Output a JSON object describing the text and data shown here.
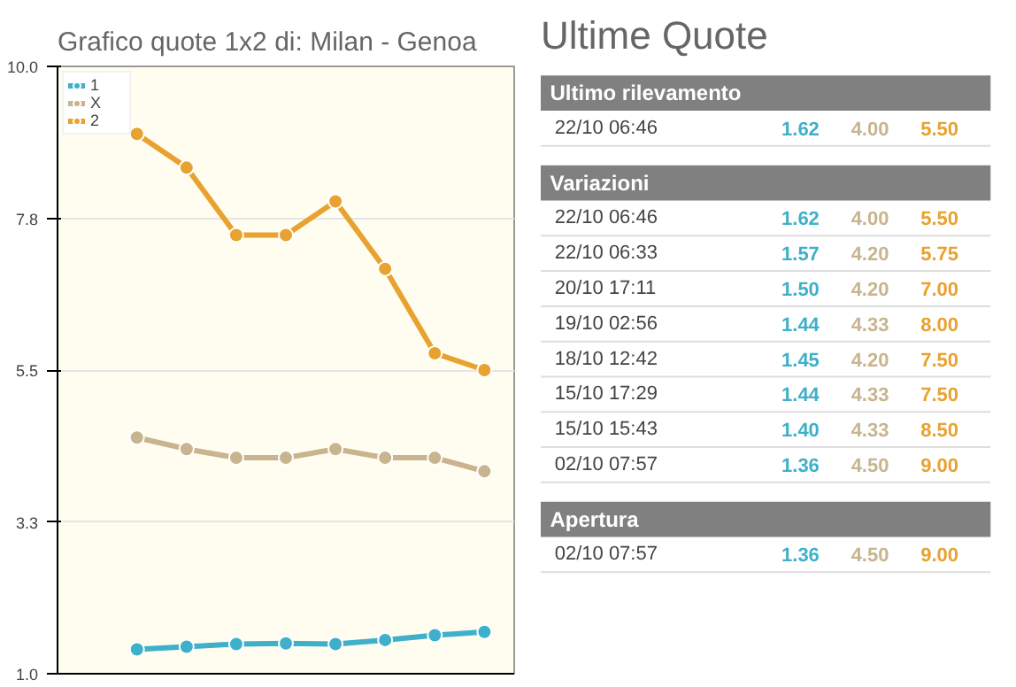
{
  "chart_data": [
    {
      "type": "line",
      "title": "Grafico quote 1x2 di: Milan - Genoa",
      "categories": [
        null,
        null,
        null,
        null,
        null,
        null,
        null,
        null
      ],
      "series": [
        {
          "name": "1",
          "color": "#3fb0c9",
          "values": [
            1.36,
            1.4,
            1.44,
            1.45,
            1.44,
            1.5,
            1.57,
            1.62
          ]
        },
        {
          "name": "X",
          "color": "#c8b48f",
          "values": [
            4.5,
            4.33,
            4.2,
            4.2,
            4.33,
            4.2,
            4.2,
            4.0
          ]
        },
        {
          "name": "2",
          "color": "#e8a22f",
          "values": [
            9.0,
            8.5,
            7.5,
            7.5,
            8.0,
            7.0,
            5.75,
            5.5
          ]
        }
      ],
      "ylim": [
        1.0,
        10.0
      ],
      "yticks": [
        {
          "value": 1.0,
          "label": "1.0"
        },
        {
          "value": 3.25,
          "label": "3.3"
        },
        {
          "value": 5.5,
          "label": "5.5"
        },
        {
          "value": 7.75,
          "label": "7.8"
        },
        {
          "value": 10.0,
          "label": "10.0"
        }
      ],
      "grid": "y",
      "legend": "top left",
      "marker": "circle",
      "line_style": "solid"
    },
    {
      "type": "other",
      "title": "Ultime Quote",
      "annotations": [
        "Ultimo rilevamento",
        "Variazioni",
        "Apertura"
      ],
      "categories": [
        "22/10 06:46",
        "22/10 06:46",
        "22/10 06:33",
        "20/10 17:11",
        "19/10 02:56",
        "18/10 12:42",
        "15/10 17:29",
        "15/10 15:43",
        "02/10 07:57",
        "02/10 07:57"
      ],
      "series": [
        {
          "color": "#3fb0c9",
          "values": [
            1.62,
            1.62,
            1.57,
            1.5,
            1.44,
            1.45,
            1.44,
            1.4,
            1.36,
            1.36
          ],
          "value_labels": [
            "1.62",
            "1.62",
            "1.57",
            "1.50",
            "1.44",
            "1.45",
            "1.44",
            "1.40",
            "1.36",
            "1.36"
          ]
        },
        {
          "color": "#c8b48f",
          "values": [
            4.0,
            4.0,
            4.2,
            4.2,
            4.33,
            4.2,
            4.33,
            4.33,
            4.5,
            4.5
          ],
          "value_labels": [
            "4.00",
            "4.00",
            "4.20",
            "4.20",
            "4.33",
            "4.20",
            "4.33",
            "4.33",
            "4.50",
            "4.50"
          ]
        },
        {
          "color": "#e8a22f",
          "values": [
            5.5,
            5.5,
            5.75,
            7.0,
            8.0,
            7.5,
            7.5,
            8.5,
            9.0,
            9.0
          ],
          "value_labels": [
            "5.50",
            "5.50",
            "5.75",
            "7.00",
            "8.00",
            "7.50",
            "7.50",
            "8.50",
            "9.00",
            "9.00"
          ]
        }
      ]
    }
  ]
}
